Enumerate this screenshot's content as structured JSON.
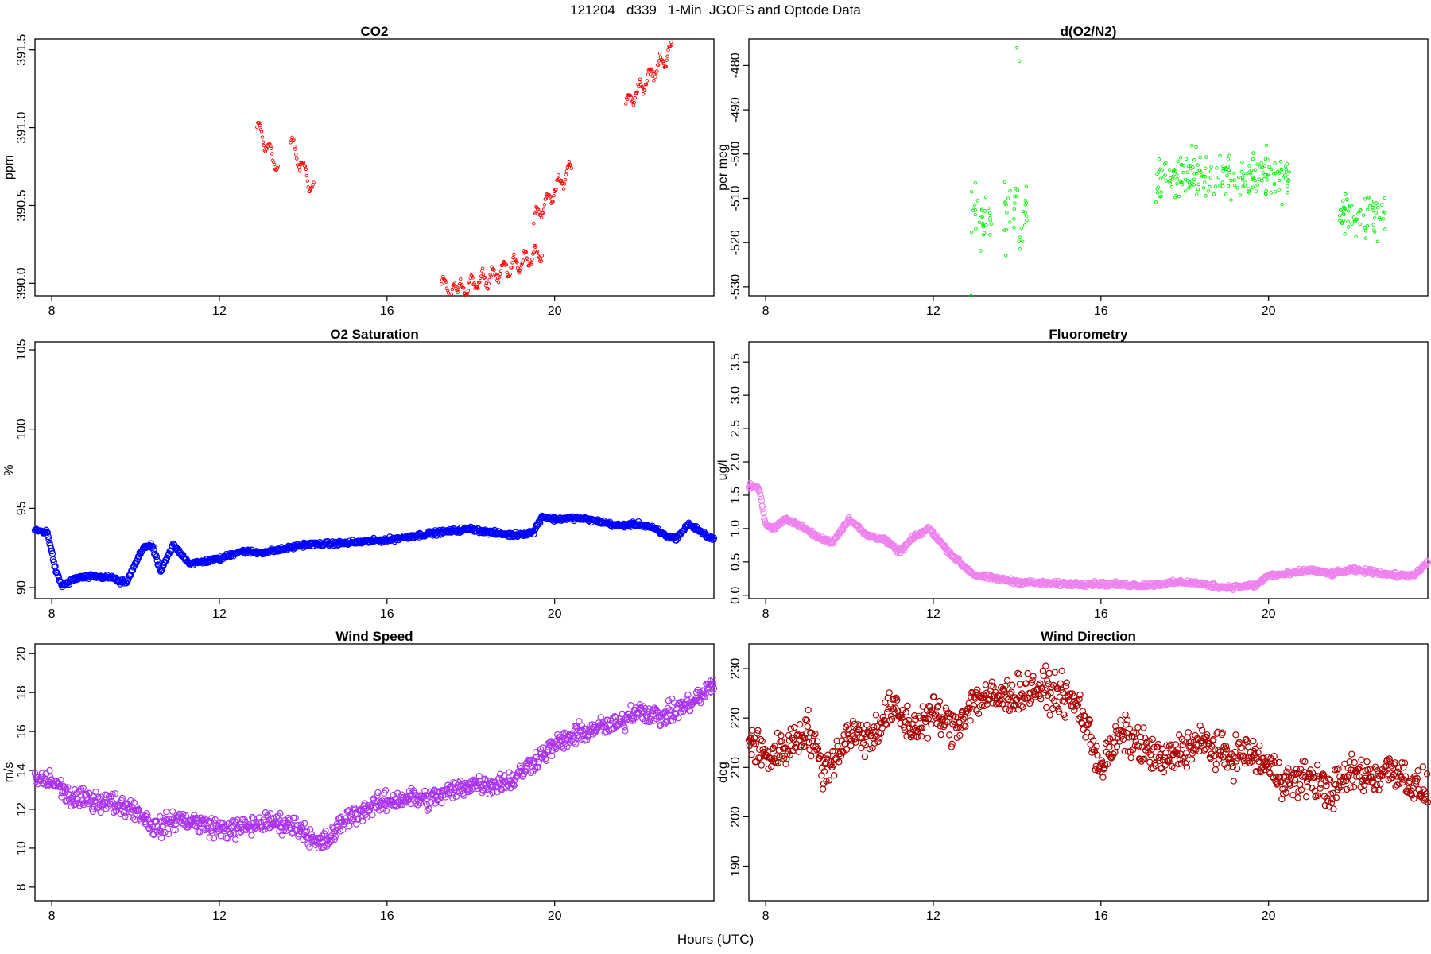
{
  "figure": {
    "title": "121204   d339   1-Min  JGOFS and Optode Data",
    "xlabel": "Hours (UTC)"
  },
  "chart_data": [
    {
      "type": "scatter",
      "key": "co2",
      "title": "CO2",
      "ylabel": "ppm",
      "color": "#ff0000",
      "marker": "small-circle",
      "xlim": [
        7.6,
        23.8
      ],
      "ylim": [
        389.92,
        391.57
      ],
      "xticks": [
        8,
        12,
        16,
        20
      ],
      "yticks": [
        390.0,
        390.5,
        391.0,
        391.5
      ],
      "ytick_labels": [
        "390.0",
        "390.5",
        "391.0",
        "391.5"
      ],
      "segments": [
        {
          "x": [
            12.9,
            13.4
          ],
          "y": [
            391.0,
            390.75
          ]
        },
        {
          "x": [
            13.7,
            14.25
          ],
          "y": [
            390.9,
            390.6
          ]
        },
        {
          "x": [
            17.3,
            17.7
          ],
          "y": [
            390.0,
            389.92
          ]
        },
        {
          "x": [
            17.7,
            19.7
          ],
          "y": [
            389.95,
            390.2
          ]
        },
        {
          "x": [
            19.5,
            20.4
          ],
          "y": [
            390.4,
            390.75
          ]
        },
        {
          "x": [
            21.7,
            22.8
          ],
          "y": [
            391.15,
            391.5
          ]
        }
      ]
    },
    {
      "type": "scatter",
      "key": "o2n2",
      "title": "d(O2/N2)",
      "ylabel": "per meg",
      "color": "#00ee00",
      "marker": "small-circle",
      "xlim": [
        7.6,
        23.8
      ],
      "ylim": [
        -532,
        -474
      ],
      "xticks": [
        8,
        12,
        16,
        20
      ],
      "yticks": [
        -530,
        -520,
        -510,
        -500,
        -490,
        -480
      ],
      "ytick_labels": [
        "-530",
        "-520",
        "-510",
        "-500",
        "-490",
        "-480"
      ],
      "clusters": [
        {
          "x": [
            12.9,
            13.4
          ],
          "center": -515,
          "spread": 7
        },
        {
          "x": [
            13.7,
            14.25
          ],
          "center": -513,
          "spread": 7
        },
        {
          "x": [
            17.3,
            20.5
          ],
          "center": -505,
          "spread": 5
        },
        {
          "x": [
            21.7,
            22.8
          ],
          "center": -514,
          "spread": 4
        }
      ],
      "outliers": [
        {
          "x": 14.0,
          "y": -476
        },
        {
          "x": 14.05,
          "y": -479
        },
        {
          "x": 12.9,
          "y": -532
        }
      ]
    },
    {
      "type": "scatter",
      "key": "o2sat",
      "title": "O2 Saturation",
      "ylabel": "%",
      "color": "#0000ff",
      "marker": "circle",
      "xlim": [
        7.6,
        23.8
      ],
      "ylim": [
        89.3,
        105.5
      ],
      "xticks": [
        8,
        12,
        16,
        20
      ],
      "yticks": [
        90,
        95,
        100,
        105
      ],
      "ytick_labels": [
        "90",
        "95",
        "100",
        "105"
      ],
      "series_knots": {
        "x": [
          7.6,
          7.9,
          8.1,
          8.25,
          8.6,
          9.0,
          9.5,
          9.6,
          9.8,
          10.2,
          10.4,
          10.6,
          10.9,
          11.3,
          12.0,
          12.5,
          13.0,
          13.5,
          14.0,
          15.0,
          16.0,
          17.0,
          18.0,
          18.4,
          19.0,
          19.5,
          19.7,
          20.0,
          20.5,
          21.0,
          21.5,
          22.0,
          22.3,
          22.7,
          22.9,
          23.2,
          23.8
        ],
        "y": [
          93.6,
          93.5,
          91.0,
          90.1,
          90.6,
          90.7,
          90.6,
          90.3,
          90.4,
          92.6,
          92.6,
          91.0,
          92.7,
          91.5,
          91.8,
          92.3,
          92.2,
          92.4,
          92.7,
          92.8,
          93.0,
          93.4,
          93.7,
          93.5,
          93.3,
          93.5,
          94.5,
          94.3,
          94.4,
          94.2,
          93.9,
          94.0,
          93.8,
          93.2,
          93.1,
          94.0,
          93.0
        ]
      },
      "noise": 0.12
    },
    {
      "type": "scatter",
      "key": "fluoro",
      "title": "Fluorometry",
      "ylabel": "ug/l",
      "color": "#ee82ee",
      "marker": "circle",
      "xlim": [
        7.6,
        23.8
      ],
      "ylim": [
        -0.05,
        3.8
      ],
      "xticks": [
        8,
        12,
        16,
        20
      ],
      "yticks": [
        0.0,
        0.5,
        1.0,
        1.5,
        2.0,
        2.5,
        3.0,
        3.5
      ],
      "ytick_labels": [
        "0.0",
        "0.5",
        "1.0",
        "1.5",
        "2.0",
        "2.5",
        "3.0",
        "3.5"
      ],
      "series_knots": {
        "x": [
          7.6,
          7.85,
          8.0,
          8.2,
          8.5,
          8.8,
          9.3,
          9.6,
          10.0,
          10.4,
          10.8,
          11.2,
          11.5,
          11.9,
          12.3,
          12.7,
          13.0,
          13.5,
          14.0,
          15.0,
          16.0,
          17.0,
          18.0,
          19.0,
          19.7,
          20.0,
          20.5,
          21.0,
          21.5,
          22.0,
          22.5,
          23.0,
          23.5,
          23.8
        ],
        "y": [
          1.65,
          1.6,
          1.05,
          1.0,
          1.15,
          1.05,
          0.85,
          0.8,
          1.15,
          0.9,
          0.85,
          0.65,
          0.85,
          1.0,
          0.7,
          0.45,
          0.3,
          0.25,
          0.2,
          0.17,
          0.17,
          0.15,
          0.2,
          0.12,
          0.15,
          0.3,
          0.32,
          0.38,
          0.32,
          0.38,
          0.35,
          0.3,
          0.3,
          0.5
        ]
      },
      "noise": 0.03
    },
    {
      "type": "scatter",
      "key": "wspd",
      "title": "Wind Speed",
      "ylabel": "m/s",
      "color": "#aa33ee",
      "marker": "circle",
      "xlim": [
        7.6,
        23.8
      ],
      "ylim": [
        7.3,
        20.5
      ],
      "xticks": [
        8,
        12,
        16,
        20
      ],
      "yticks": [
        8,
        10,
        12,
        14,
        16,
        18,
        20
      ],
      "ytick_labels": [
        "8",
        "10",
        "12",
        "14",
        "16",
        "18",
        "20"
      ],
      "series_knots": {
        "x": [
          7.6,
          8.0,
          8.5,
          9.0,
          9.5,
          10.0,
          10.5,
          11.0,
          11.5,
          12.0,
          12.5,
          13.0,
          13.5,
          14.0,
          14.3,
          14.6,
          15.0,
          15.5,
          16.0,
          16.5,
          17.0,
          17.5,
          18.0,
          18.5,
          19.0,
          19.5,
          20.0,
          20.5,
          21.0,
          21.5,
          22.0,
          22.5,
          23.0,
          23.5,
          23.8
        ],
        "y": [
          13.5,
          13.5,
          12.5,
          12.5,
          12.3,
          12.0,
          11.0,
          11.5,
          11.3,
          11.0,
          11.0,
          11.3,
          11.3,
          11.0,
          10.2,
          10.4,
          11.5,
          12.0,
          12.4,
          12.6,
          12.5,
          12.9,
          13.3,
          13.3,
          13.5,
          14.5,
          15.3,
          15.8,
          16.2,
          16.3,
          17.2,
          16.7,
          17.2,
          17.8,
          18.5
        ]
      },
      "noise": 0.45
    },
    {
      "type": "scatter",
      "key": "wdir",
      "title": "Wind Direction",
      "ylabel": "deg",
      "color": "#aa0000",
      "marker": "circle",
      "xlim": [
        7.6,
        23.8
      ],
      "ylim": [
        183,
        235
      ],
      "xticks": [
        8,
        12,
        16,
        20
      ],
      "yticks": [
        190,
        200,
        210,
        220,
        230
      ],
      "ytick_labels": [
        "190",
        "200",
        "210",
        "220",
        "230"
      ],
      "series_knots": {
        "x": [
          7.6,
          8.0,
          8.5,
          9.0,
          9.4,
          10.0,
          10.5,
          11.0,
          11.5,
          12.0,
          12.5,
          13.0,
          13.5,
          14.0,
          14.5,
          15.0,
          15.5,
          16.0,
          16.5,
          17.0,
          17.5,
          18.0,
          18.5,
          19.0,
          19.5,
          20.0,
          20.5,
          21.0,
          21.5,
          22.0,
          22.5,
          23.0,
          23.5,
          23.8
        ],
        "y": [
          216,
          212,
          214,
          218,
          209,
          217,
          216,
          222,
          218,
          221,
          218,
          224,
          224,
          225,
          226,
          225,
          222,
          210,
          217,
          214,
          211,
          214,
          215,
          212,
          213,
          210,
          207,
          208,
          205,
          209,
          208,
          210,
          206,
          205
        ]
      },
      "noise": 3.2
    }
  ]
}
